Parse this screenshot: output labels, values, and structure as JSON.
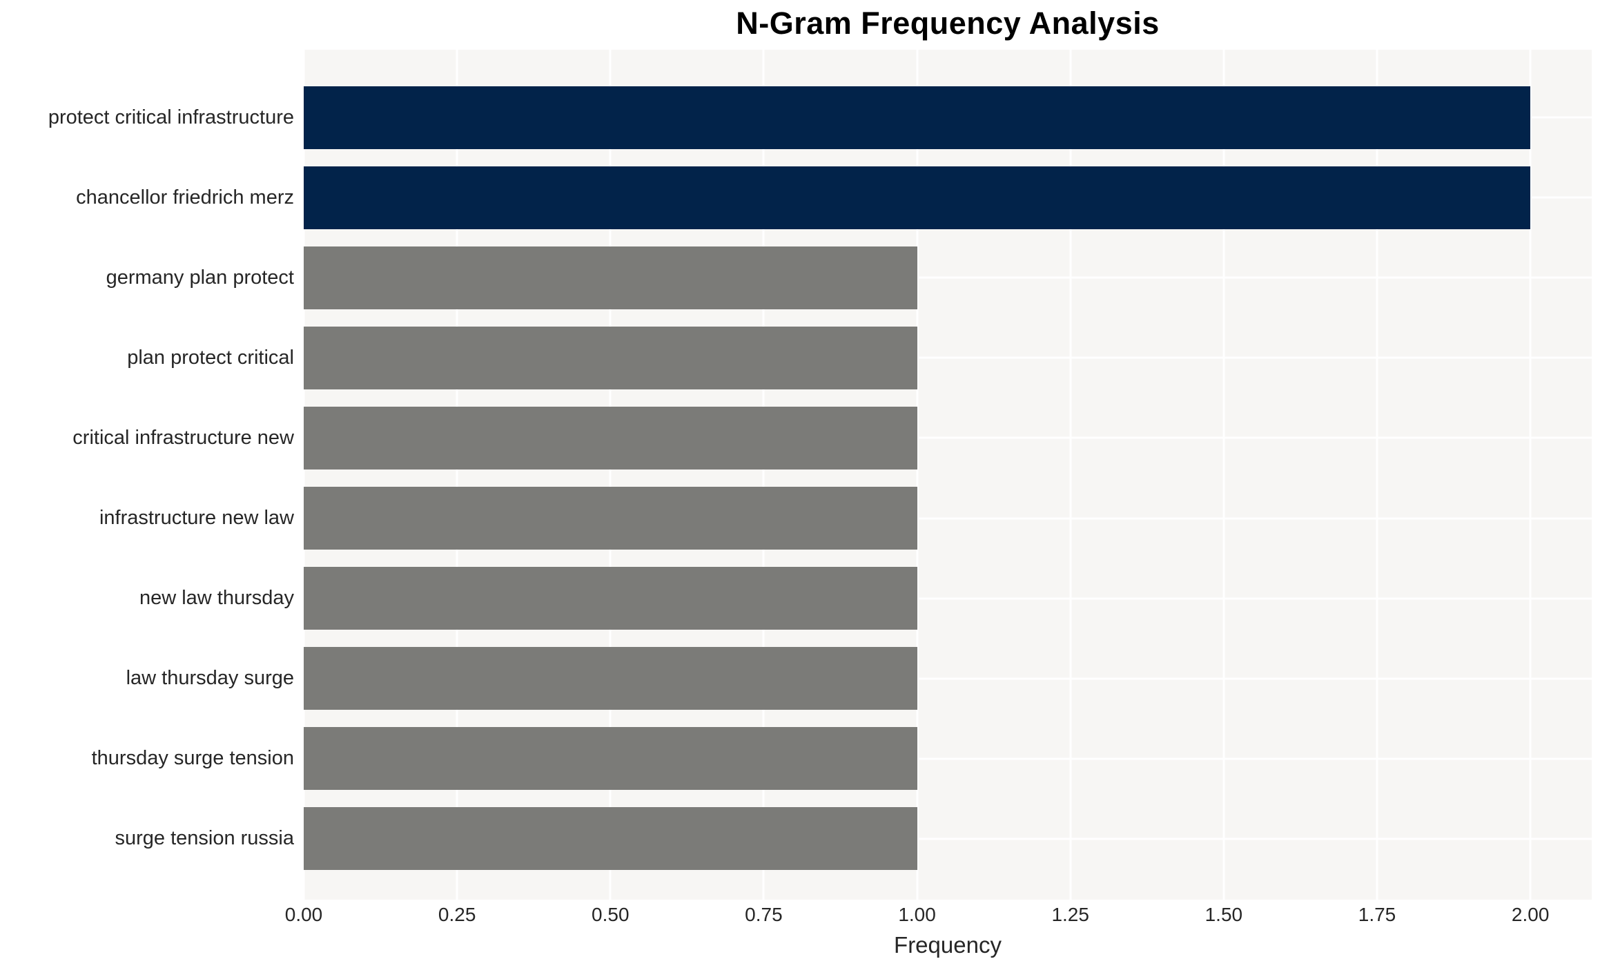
{
  "title": "N-Gram Frequency Analysis",
  "chart_data": {
    "type": "bar",
    "orientation": "horizontal",
    "title": "N-Gram Frequency Analysis",
    "xlabel": "Frequency",
    "ylabel": "",
    "categories": [
      "protect critical infrastructure",
      "chancellor friedrich merz",
      "germany plan protect",
      "plan protect critical",
      "critical infrastructure new",
      "infrastructure new law",
      "new law thursday",
      "law thursday surge",
      "thursday surge tension",
      "surge tension russia"
    ],
    "values": [
      2,
      2,
      1,
      1,
      1,
      1,
      1,
      1,
      1,
      1
    ],
    "bar_colors": [
      "#02234a",
      "#02234a",
      "#7b7b78",
      "#7b7b78",
      "#7b7b78",
      "#7b7b78",
      "#7b7b78",
      "#7b7b78",
      "#7b7b78",
      "#7b7b78"
    ],
    "highlight_color": "#02234a",
    "default_color": "#7b7b78",
    "xlim": [
      0,
      2.1
    ],
    "xticks": [
      0.0,
      0.25,
      0.5,
      0.75,
      1.0,
      1.25,
      1.5,
      1.75,
      2.0
    ],
    "xtick_labels": [
      "0.00",
      "0.25",
      "0.50",
      "0.75",
      "1.00",
      "1.25",
      "1.50",
      "1.75",
      "2.00"
    ],
    "grid": true,
    "grid_color": "#ffffff",
    "plot_bg": "#f7f6f4",
    "legend": false
  }
}
